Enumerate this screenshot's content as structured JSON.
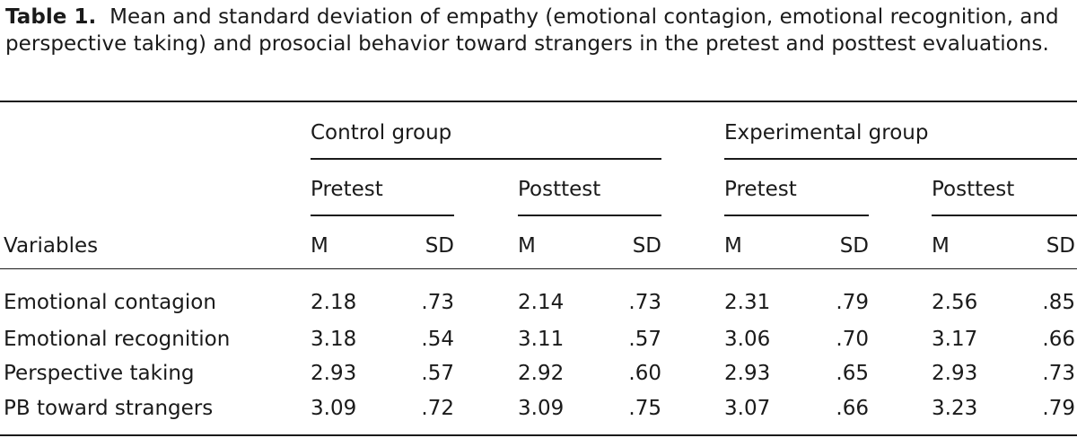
{
  "caption": {
    "label": "Table 1.",
    "text": "Mean and standard deviation of empathy (emotional contagion, emotional recognition, and perspective taking) and prosocial behavior toward strangers in the pretest and posttest evaluations."
  },
  "table": {
    "groups": [
      "Control group",
      "Experimental group"
    ],
    "phases": [
      "Pretest",
      "Posttest",
      "Pretest",
      "Posttest"
    ],
    "variables_header": "Variables",
    "stat_headers": [
      "M",
      "SD",
      "M",
      "SD",
      "M",
      "SD",
      "M",
      "SD"
    ],
    "rows": [
      {
        "label": "Emotional contagion",
        "values": [
          "2.18",
          ".73",
          "2.14",
          ".73",
          "2.31",
          ".79",
          "2.56",
          ".85"
        ]
      },
      {
        "label": "Emotional recognition",
        "values": [
          "3.18",
          ".54",
          "3.11",
          ".57",
          "3.06",
          ".70",
          "3.17",
          ".66"
        ]
      },
      {
        "label": "Perspective taking",
        "values": [
          "2.93",
          ".57",
          "2.92",
          ".60",
          "2.93",
          ".65",
          "2.93",
          ".73"
        ]
      },
      {
        "label": "PB toward strangers",
        "values": [
          "3.09",
          ".72",
          "3.09",
          ".75",
          "3.07",
          ".66",
          "3.23",
          ".79"
        ]
      }
    ]
  }
}
